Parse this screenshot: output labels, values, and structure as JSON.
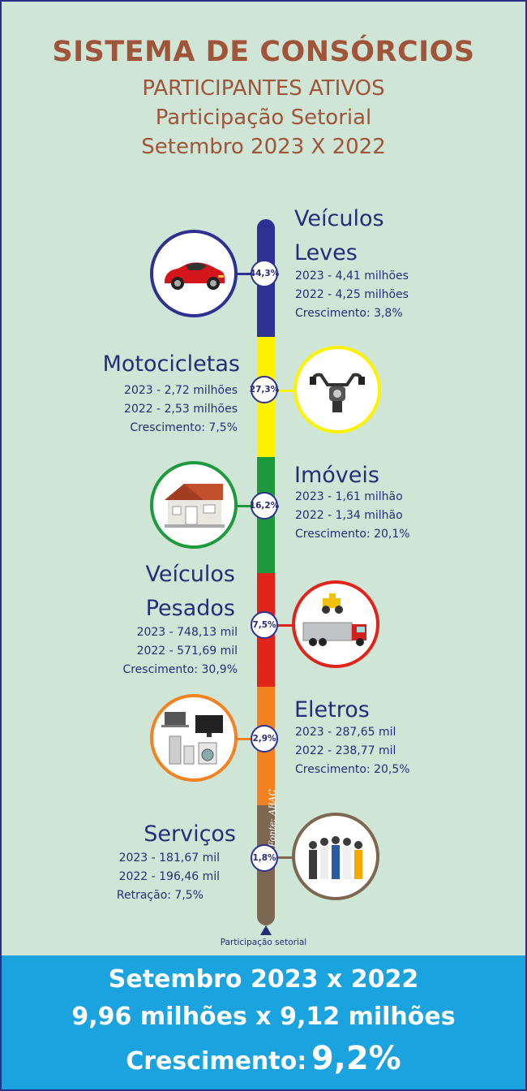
{
  "header": {
    "title": "SISTEMA DE CONSÓRCIOS",
    "subtitle": "PARTICIPANTES ATIVOS",
    "line3": "Participação Setorial",
    "line4": "Setembro 2023 X 2022"
  },
  "sectors": [
    {
      "name_1": "Veículos",
      "name_2": "Leves",
      "share": "44,3%",
      "y2023": "2023 - 4,41 milhões",
      "y2022": "2022 - 4,25 milhões",
      "change": "Crescimento: 3,8%",
      "color": "#2e3192",
      "icon": "car-icon"
    },
    {
      "name_1": "Motocicletas",
      "share": "27,3%",
      "y2023": "2023 - 2,72 milhões",
      "y2022": "2022 - 2,53 milhões",
      "change": "Crescimento: 7,5%",
      "color": "#fff200",
      "icon": "motorcycle-handlebar-icon"
    },
    {
      "name_1": "Imóveis",
      "share": "16,2%",
      "y2023": "2023 - 1,61 milhão",
      "y2022": "2022 - 1,34 milhão",
      "change": "Crescimento: 20,1%",
      "color": "#1e9a3e",
      "icon": "house-icon"
    },
    {
      "name_1": "Veículos",
      "name_2": "Pesados",
      "share": "7,5%",
      "y2023": "2023 - 748,13 mil",
      "y2022": "2022 - 571,69 mil",
      "change": "Crescimento: 30,9%",
      "color": "#e2231a",
      "icon": "truck-tractor-icon"
    },
    {
      "name_1": "Eletros",
      "share": "2,9%",
      "y2023": "2023 - 287,65 mil",
      "y2022": "2022 - 238,77 mil",
      "change": "Crescimento: 20,5%",
      "color": "#f58220",
      "icon": "appliances-icon"
    },
    {
      "name_1": "Serviços",
      "share": "1,8%",
      "y2023": "2023 - 181,67 mil",
      "y2022": "2022 - 196,46 mil",
      "change": "Retração: 7,5%",
      "color": "#7d6750",
      "icon": "people-icon"
    }
  ],
  "source": "Fonte: ABAC",
  "axis_label": "Participação setorial",
  "footer": {
    "line1": "Setembro 2023 x 2022",
    "line2": "9,96 milhões x 9,12 milhões",
    "growth_label": "Crescimento:",
    "growth_value": "9,2%"
  },
  "chart_data": {
    "type": "bar",
    "categories": [
      "Veículos Leves",
      "Motocicletas",
      "Imóveis",
      "Veículos Pesados",
      "Eletros",
      "Serviços"
    ],
    "series": [
      {
        "values": [
          44.3,
          27.3,
          16.2,
          7.5,
          2.9,
          1.8
        ]
      }
    ]
  }
}
